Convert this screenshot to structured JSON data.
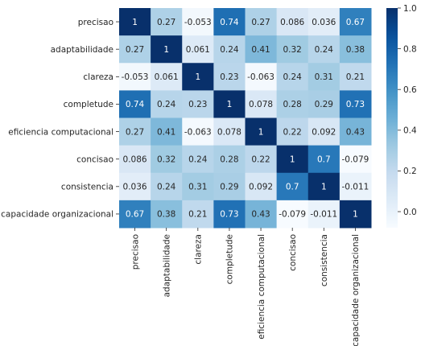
{
  "chart_data": {
    "type": "heatmap",
    "title": "",
    "xlabel": "",
    "ylabel": "",
    "rows": [
      "precisao",
      "adaptabilidade",
      "clareza",
      "completude",
      "eficiencia computacional",
      "concisao",
      "consistencia",
      "capacidade organizacional"
    ],
    "columns": [
      "precisao",
      "adaptabilidade",
      "clareza",
      "completude",
      "eficiencia computacional",
      "concisao",
      "consistencia",
      "capacidade organizacional"
    ],
    "values": [
      [
        1,
        0.27,
        -0.053,
        0.74,
        0.27,
        0.086,
        0.036,
        0.67
      ],
      [
        0.27,
        1,
        0.061,
        0.24,
        0.41,
        0.32,
        0.24,
        0.38
      ],
      [
        -0.053,
        0.061,
        1,
        0.23,
        -0.063,
        0.24,
        0.31,
        0.21
      ],
      [
        0.74,
        0.24,
        0.23,
        1,
        0.078,
        0.28,
        0.29,
        0.73
      ],
      [
        0.27,
        0.41,
        -0.063,
        0.078,
        1,
        0.22,
        0.092,
        0.43
      ],
      [
        0.086,
        0.32,
        0.24,
        0.28,
        0.22,
        1,
        0.7,
        -0.079
      ],
      [
        0.036,
        0.24,
        0.31,
        0.29,
        0.092,
        0.7,
        1,
        -0.011
      ],
      [
        0.67,
        0.38,
        0.21,
        0.73,
        0.43,
        -0.079,
        -0.011,
        1
      ]
    ],
    "annotations": [
      [
        "1",
        "0.27",
        "-0.053",
        "0.74",
        "0.27",
        "0.086",
        "0.036",
        "0.67"
      ],
      [
        "0.27",
        "1",
        "0.061",
        "0.24",
        "0.41",
        "0.32",
        "0.24",
        "0.38"
      ],
      [
        "-0.053",
        "0.061",
        "1",
        "0.23",
        "-0.063",
        "0.24",
        "0.31",
        "0.21"
      ],
      [
        "0.74",
        "0.24",
        "0.23",
        "1",
        "0.078",
        "0.28",
        "0.29",
        "0.73"
      ],
      [
        "0.27",
        "0.41",
        "-0.063",
        "0.078",
        "1",
        "0.22",
        "0.092",
        "0.43"
      ],
      [
        "0.086",
        "0.32",
        "0.24",
        "0.28",
        "0.22",
        "1",
        "0.7",
        "-0.079"
      ],
      [
        "0.036",
        "0.24",
        "0.31",
        "0.29",
        "0.092",
        "0.7",
        "1",
        "-0.011"
      ],
      [
        "0.67",
        "0.38",
        "0.21",
        "0.73",
        "0.43",
        "-0.079",
        "-0.011",
        "1"
      ]
    ],
    "colorscale": "Blues",
    "color_range": [
      -0.079,
      1
    ],
    "colorbar_ticks": [
      0.0,
      0.2,
      0.4,
      0.6,
      0.8,
      1.0
    ],
    "colorbar_tick_labels": [
      "0.0",
      "0.2",
      "0.4",
      "0.6",
      "0.8",
      "1.0"
    ],
    "grid": false,
    "legend": "colorbar-right"
  }
}
